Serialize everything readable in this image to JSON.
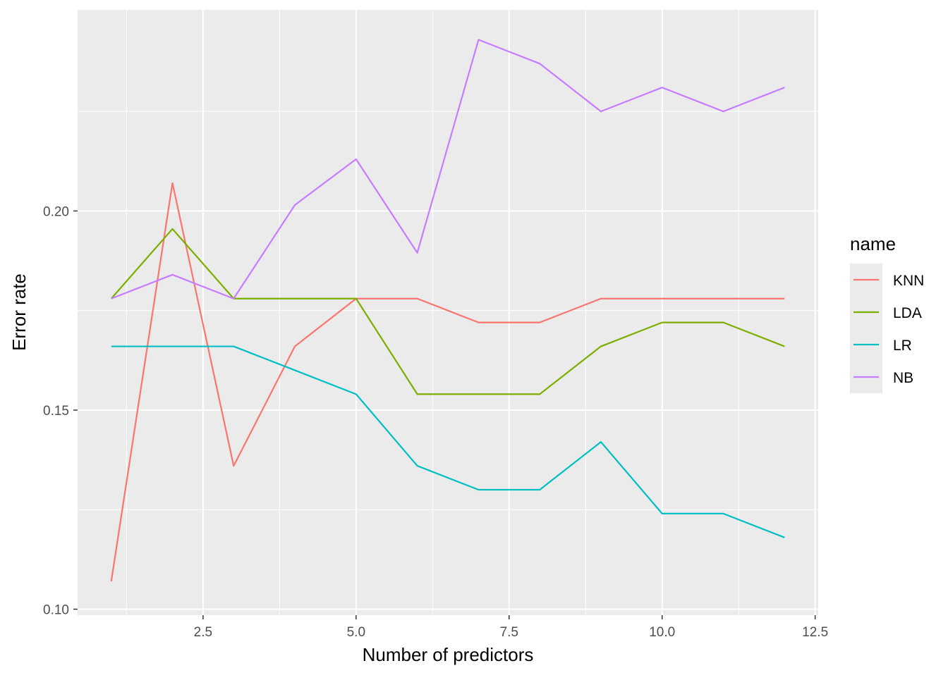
{
  "chart_data": {
    "type": "line",
    "title": "",
    "xlabel": "Number of predictors",
    "ylabel": "Error rate",
    "xlim": [
      0.45,
      12.55
    ],
    "ylim": [
      0.0985,
      0.2505
    ],
    "x_ticks": [
      2.5,
      5.0,
      7.5,
      10.0,
      12.5
    ],
    "x_tick_labels": [
      "2.5",
      "5.0",
      "7.5",
      "10.0",
      "12.5"
    ],
    "y_ticks": [
      0.1,
      0.15,
      0.2
    ],
    "y_tick_labels": [
      "0.10",
      "0.15",
      "0.20"
    ],
    "grid": true,
    "legend": {
      "title": "name",
      "placement": "right"
    },
    "x": [
      1,
      2,
      3,
      4,
      5,
      6,
      7,
      8,
      9,
      10,
      11,
      12
    ],
    "series": [
      {
        "name": "KNN",
        "color": "#F8766D",
        "values": [
          0.107,
          0.207,
          0.136,
          0.166,
          0.178,
          0.178,
          0.172,
          0.172,
          0.178,
          0.178,
          0.178,
          0.178
        ]
      },
      {
        "name": "LDA",
        "color": "#7CAE00",
        "values": [
          0.178,
          0.1955,
          0.178,
          0.178,
          0.178,
          0.154,
          0.154,
          0.154,
          0.166,
          0.172,
          0.172,
          0.166
        ]
      },
      {
        "name": "LR",
        "color": "#00BFC4",
        "values": [
          0.166,
          0.166,
          0.166,
          0.16,
          0.154,
          0.136,
          0.13,
          0.13,
          0.142,
          0.124,
          0.124,
          0.118
        ]
      },
      {
        "name": "NB",
        "color": "#C77CFF",
        "values": [
          0.178,
          0.184,
          0.178,
          0.2015,
          0.213,
          0.1895,
          0.243,
          0.237,
          0.225,
          0.231,
          0.225,
          0.231
        ]
      }
    ]
  }
}
